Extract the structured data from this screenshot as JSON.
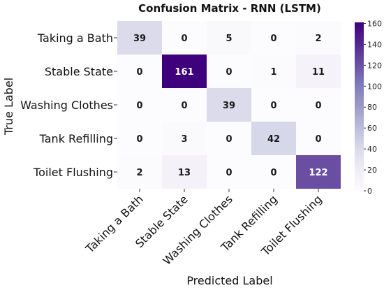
{
  "chart_data": {
    "type": "heatmap",
    "title": "Confusion Matrix - RNN (LSTM)",
    "xlabel": "Predicted Label",
    "ylabel": "True Label",
    "rows": [
      "Taking a Bath",
      "Stable State",
      "Washing Clothes",
      "Tank Refilling",
      "Toilet Flushing"
    ],
    "columns": [
      "Taking a Bath",
      "Stable State",
      "Washing Clothes",
      "Tank Refilling",
      "Toilet Flushing"
    ],
    "values": [
      [
        39,
        0,
        5,
        0,
        2
      ],
      [
        0,
        161,
        0,
        1,
        11
      ],
      [
        0,
        0,
        39,
        0,
        0
      ],
      [
        0,
        3,
        0,
        42,
        0
      ],
      [
        2,
        13,
        0,
        0,
        122
      ]
    ],
    "colormap": "Purples",
    "color_low": "#fcfbfd",
    "color_high": "#3f007d",
    "colorbar_range": [
      0,
      161
    ],
    "colorbar_ticks": [
      0,
      20,
      40,
      60,
      80,
      100,
      120,
      140,
      160
    ]
  }
}
